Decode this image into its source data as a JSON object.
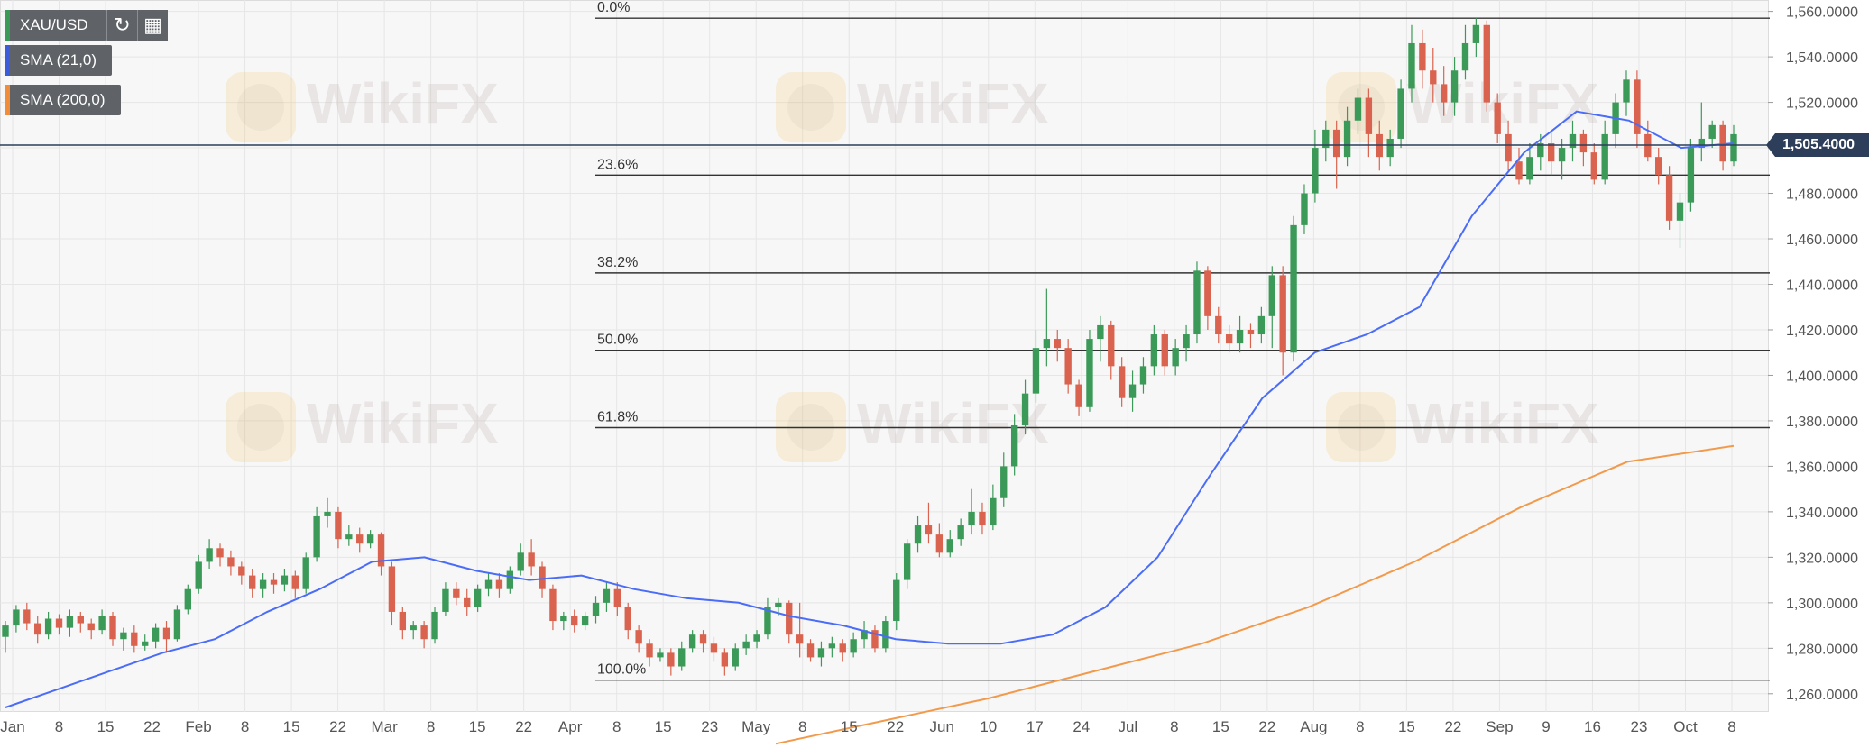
{
  "toolbar": {
    "symbol": "XAU/USD",
    "reload_icon": "reload-icon",
    "calendar_icon": "calendar-icon"
  },
  "indicators": [
    {
      "label": "SMA (21,0)",
      "color": "#3b5bdb"
    },
    {
      "label": "SMA (200,0)",
      "color": "#f08c3a"
    }
  ],
  "price_tag": "1,505.4000",
  "colors": {
    "up": "#3c9a59",
    "down": "#d9634f",
    "sma21": "#4a6cf7",
    "sma200": "#f29a4c"
  },
  "chart_data": {
    "type": "candlestick",
    "ylim": [
      1252,
      1565
    ],
    "y_ticks": [
      "1,260.0000",
      "1,280.0000",
      "1,300.0000",
      "1,320.0000",
      "1,340.0000",
      "1,360.0000",
      "1,380.0000",
      "1,400.0000",
      "1,420.0000",
      "1,440.0000",
      "1,460.0000",
      "1,480.0000",
      "1,500.0000",
      "1,520.0000",
      "1,540.0000",
      "1,560.0000"
    ],
    "x_ticks": [
      "Jan",
      "8",
      "15",
      "22",
      "Feb",
      "8",
      "15",
      "22",
      "Mar",
      "8",
      "15",
      "22",
      "Apr",
      "8",
      "15",
      "23",
      "May",
      "8",
      "15",
      "22",
      "Jun",
      "10",
      "17",
      "24",
      "Jul",
      "8",
      "15",
      "22",
      "Aug",
      "8",
      "15",
      "22",
      "Sep",
      "9",
      "16",
      "23",
      "Oct",
      "8"
    ],
    "current_price": 1505.4,
    "fibonacci": [
      {
        "label": "0.0%",
        "value": 1557
      },
      {
        "label": "23.6%",
        "value": 1488
      },
      {
        "label": "38.2%",
        "value": 1445
      },
      {
        "label": "50.0%",
        "value": 1411
      },
      {
        "label": "61.8%",
        "value": 1377
      },
      {
        "label": "100.0%",
        "value": 1266
      }
    ],
    "sma21": [
      1254,
      1262,
      1270,
      1278,
      1284,
      1296,
      1306,
      1318,
      1320,
      1314,
      1310,
      1312,
      1306,
      1302,
      1300,
      1294,
      1290,
      1284,
      1282,
      1282,
      1286,
      1298,
      1320,
      1356,
      1390,
      1410,
      1418,
      1430,
      1470,
      1498,
      1516,
      1512,
      1500,
      1502
    ],
    "sma200": [
      1238,
      1248,
      1258,
      1270,
      1282,
      1298,
      1318,
      1342,
      1362,
      1369
    ],
    "candles": [
      [
        1285,
        1290,
        1278,
        1292
      ],
      [
        1290,
        1297,
        1287,
        1299
      ],
      [
        1297,
        1291,
        1288,
        1300
      ],
      [
        1291,
        1286,
        1282,
        1294
      ],
      [
        1286,
        1293,
        1284,
        1296
      ],
      [
        1293,
        1289,
        1286,
        1295
      ],
      [
        1289,
        1294,
        1285,
        1297
      ],
      [
        1294,
        1291,
        1287,
        1296
      ],
      [
        1291,
        1288,
        1284,
        1293
      ],
      [
        1288,
        1294,
        1286,
        1297
      ],
      [
        1294,
        1284,
        1281,
        1296
      ],
      [
        1284,
        1287,
        1279,
        1289
      ],
      [
        1287,
        1281,
        1278,
        1290
      ],
      [
        1281,
        1283,
        1279,
        1286
      ],
      [
        1283,
        1289,
        1280,
        1291
      ],
      [
        1289,
        1284,
        1278,
        1292
      ],
      [
        1284,
        1297,
        1283,
        1299
      ],
      [
        1297,
        1306,
        1295,
        1308
      ],
      [
        1306,
        1318,
        1304,
        1321
      ],
      [
        1318,
        1324,
        1315,
        1328
      ],
      [
        1324,
        1320,
        1316,
        1326
      ],
      [
        1320,
        1316,
        1312,
        1323
      ],
      [
        1316,
        1312,
        1308,
        1318
      ],
      [
        1312,
        1306,
        1302,
        1315
      ],
      [
        1306,
        1310,
        1302,
        1313
      ],
      [
        1310,
        1308,
        1304,
        1313
      ],
      [
        1308,
        1312,
        1305,
        1315
      ],
      [
        1312,
        1306,
        1302,
        1314
      ],
      [
        1306,
        1320,
        1304,
        1322
      ],
      [
        1320,
        1338,
        1318,
        1342
      ],
      [
        1338,
        1340,
        1333,
        1346
      ],
      [
        1340,
        1328,
        1324,
        1342
      ],
      [
        1328,
        1330,
        1325,
        1334
      ],
      [
        1330,
        1326,
        1322,
        1333
      ],
      [
        1326,
        1330,
        1324,
        1332
      ],
      [
        1330,
        1316,
        1312,
        1331
      ],
      [
        1316,
        1296,
        1290,
        1318
      ],
      [
        1296,
        1288,
        1284,
        1298
      ],
      [
        1288,
        1290,
        1284,
        1292
      ],
      [
        1290,
        1284,
        1280,
        1292
      ],
      [
        1284,
        1296,
        1282,
        1298
      ],
      [
        1296,
        1306,
        1294,
        1309
      ],
      [
        1306,
        1302,
        1299,
        1309
      ],
      [
        1302,
        1298,
        1294,
        1306
      ],
      [
        1298,
        1306,
        1296,
        1308
      ],
      [
        1306,
        1310,
        1303,
        1313
      ],
      [
        1310,
        1306,
        1302,
        1313
      ],
      [
        1306,
        1314,
        1304,
        1316
      ],
      [
        1314,
        1322,
        1312,
        1326
      ],
      [
        1322,
        1316,
        1312,
        1328
      ],
      [
        1316,
        1306,
        1302,
        1318
      ],
      [
        1306,
        1292,
        1288,
        1308
      ],
      [
        1292,
        1294,
        1288,
        1296
      ],
      [
        1294,
        1290,
        1287,
        1297
      ],
      [
        1290,
        1294,
        1288,
        1296
      ],
      [
        1294,
        1300,
        1291,
        1303
      ],
      [
        1300,
        1306,
        1296,
        1309
      ],
      [
        1306,
        1298,
        1294,
        1309
      ],
      [
        1298,
        1288,
        1284,
        1300
      ],
      [
        1288,
        1282,
        1278,
        1290
      ],
      [
        1282,
        1276,
        1272,
        1284
      ],
      [
        1276,
        1278,
        1274,
        1280
      ],
      [
        1278,
        1272,
        1268,
        1280
      ],
      [
        1272,
        1280,
        1270,
        1283
      ],
      [
        1280,
        1286,
        1278,
        1288
      ],
      [
        1286,
        1282,
        1278,
        1288
      ],
      [
        1282,
        1278,
        1274,
        1285
      ],
      [
        1278,
        1272,
        1268,
        1280
      ],
      [
        1272,
        1280,
        1270,
        1282
      ],
      [
        1280,
        1283,
        1277,
        1286
      ],
      [
        1283,
        1286,
        1280,
        1288
      ],
      [
        1286,
        1298,
        1284,
        1302
      ],
      [
        1298,
        1300,
        1294,
        1302
      ],
      [
        1300,
        1286,
        1282,
        1301
      ],
      [
        1286,
        1282,
        1276,
        1300
      ],
      [
        1282,
        1276,
        1274,
        1284
      ],
      [
        1276,
        1280,
        1272,
        1283
      ],
      [
        1280,
        1282,
        1276,
        1285
      ],
      [
        1282,
        1278,
        1274,
        1284
      ],
      [
        1278,
        1284,
        1276,
        1287
      ],
      [
        1284,
        1288,
        1280,
        1292
      ],
      [
        1288,
        1280,
        1278,
        1290
      ],
      [
        1280,
        1292,
        1278,
        1294
      ],
      [
        1292,
        1310,
        1288,
        1313
      ],
      [
        1310,
        1326,
        1306,
        1328
      ],
      [
        1326,
        1334,
        1322,
        1338
      ],
      [
        1334,
        1330,
        1326,
        1344
      ],
      [
        1330,
        1322,
        1320,
        1335
      ],
      [
        1322,
        1328,
        1320,
        1332
      ],
      [
        1328,
        1334,
        1325,
        1337
      ],
      [
        1334,
        1340,
        1330,
        1350
      ],
      [
        1340,
        1334,
        1330,
        1344
      ],
      [
        1334,
        1346,
        1332,
        1352
      ],
      [
        1346,
        1360,
        1342,
        1366
      ],
      [
        1360,
        1378,
        1356,
        1383
      ],
      [
        1378,
        1392,
        1374,
        1398
      ],
      [
        1392,
        1412,
        1388,
        1420
      ],
      [
        1412,
        1416,
        1404,
        1438
      ],
      [
        1416,
        1412,
        1406,
        1420
      ],
      [
        1412,
        1396,
        1392,
        1416
      ],
      [
        1396,
        1386,
        1382,
        1398
      ],
      [
        1386,
        1416,
        1384,
        1420
      ],
      [
        1416,
        1422,
        1406,
        1426
      ],
      [
        1422,
        1404,
        1398,
        1424
      ],
      [
        1404,
        1390,
        1386,
        1408
      ],
      [
        1390,
        1396,
        1384,
        1402
      ],
      [
        1396,
        1404,
        1392,
        1408
      ],
      [
        1404,
        1418,
        1400,
        1422
      ],
      [
        1418,
        1404,
        1400,
        1420
      ],
      [
        1404,
        1412,
        1400,
        1416
      ],
      [
        1412,
        1418,
        1406,
        1422
      ],
      [
        1418,
        1446,
        1414,
        1450
      ],
      [
        1446,
        1426,
        1420,
        1448
      ],
      [
        1426,
        1418,
        1414,
        1430
      ],
      [
        1418,
        1414,
        1410,
        1422
      ],
      [
        1414,
        1420,
        1410,
        1426
      ],
      [
        1420,
        1418,
        1412,
        1423
      ],
      [
        1418,
        1426,
        1414,
        1430
      ],
      [
        1426,
        1444,
        1412,
        1448
      ],
      [
        1444,
        1410,
        1400,
        1448
      ],
      [
        1410,
        1466,
        1406,
        1470
      ],
      [
        1466,
        1480,
        1462,
        1484
      ],
      [
        1480,
        1500,
        1476,
        1508
      ],
      [
        1500,
        1508,
        1494,
        1512
      ],
      [
        1508,
        1496,
        1482,
        1512
      ],
      [
        1496,
        1512,
        1492,
        1518
      ],
      [
        1512,
        1522,
        1506,
        1526
      ],
      [
        1522,
        1506,
        1496,
        1526
      ],
      [
        1506,
        1496,
        1490,
        1512
      ],
      [
        1496,
        1504,
        1492,
        1508
      ],
      [
        1504,
        1526,
        1500,
        1530
      ],
      [
        1526,
        1546,
        1520,
        1554
      ],
      [
        1546,
        1534,
        1526,
        1552
      ],
      [
        1534,
        1528,
        1520,
        1544
      ],
      [
        1528,
        1520,
        1514,
        1536
      ],
      [
        1520,
        1534,
        1514,
        1540
      ],
      [
        1534,
        1546,
        1530,
        1554
      ],
      [
        1546,
        1554,
        1540,
        1557
      ],
      [
        1554,
        1520,
        1516,
        1556
      ],
      [
        1520,
        1506,
        1502,
        1524
      ],
      [
        1506,
        1494,
        1490,
        1512
      ],
      [
        1494,
        1486,
        1484,
        1500
      ],
      [
        1486,
        1496,
        1484,
        1502
      ],
      [
        1496,
        1502,
        1490,
        1506
      ],
      [
        1502,
        1494,
        1488,
        1508
      ],
      [
        1494,
        1500,
        1486,
        1504
      ],
      [
        1500,
        1506,
        1494,
        1512
      ],
      [
        1506,
        1498,
        1492,
        1508
      ],
      [
        1498,
        1486,
        1484,
        1502
      ],
      [
        1486,
        1506,
        1484,
        1512
      ],
      [
        1506,
        1520,
        1500,
        1524
      ],
      [
        1520,
        1530,
        1514,
        1534
      ],
      [
        1530,
        1506,
        1500,
        1534
      ],
      [
        1506,
        1496,
        1494,
        1512
      ],
      [
        1496,
        1488,
        1484,
        1500
      ],
      [
        1488,
        1468,
        1464,
        1492
      ],
      [
        1468,
        1476,
        1456,
        1480
      ],
      [
        1476,
        1500,
        1472,
        1504
      ],
      [
        1500,
        1504,
        1494,
        1520
      ],
      [
        1504,
        1510,
        1500,
        1512
      ],
      [
        1510,
        1494,
        1490,
        1512
      ],
      [
        1494,
        1506,
        1492,
        1510
      ]
    ]
  }
}
